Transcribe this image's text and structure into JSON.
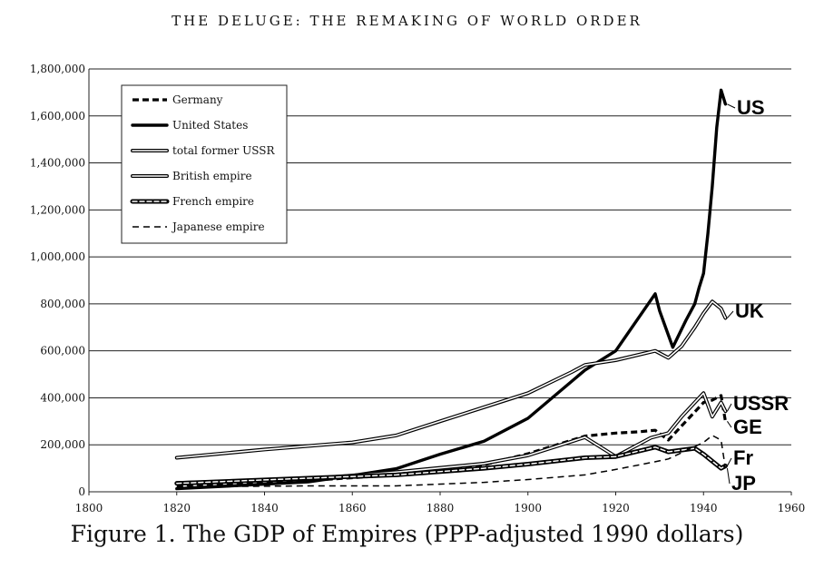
{
  "header": "THE DELUGE: THE REMAKING OF WORLD ORDER",
  "caption": "Figure 1. The GDP of Empires (PPP-adjusted 1990 dollars)",
  "chart_data": {
    "type": "line",
    "title": "",
    "xlabel": "",
    "ylabel": "",
    "xlim": [
      1800,
      1960
    ],
    "ylim": [
      0,
      1800000
    ],
    "grid": "horizontal",
    "legend_position": "top-left",
    "x_ticks": [
      "1800",
      "1820",
      "1840",
      "1860",
      "1880",
      "1900",
      "1920",
      "1940",
      "1960"
    ],
    "y_ticks": [
      "0",
      "200,000",
      "400,000",
      "600,000",
      "800,000",
      "1,000,000",
      "1,200,000",
      "1,400,000",
      "1,600,000",
      "1,800,000"
    ],
    "series": [
      {
        "name": "Germany",
        "label": "GE",
        "style": "dashed-bold",
        "points": [
          [
            1820,
            27000
          ],
          [
            1850,
            48000
          ],
          [
            1870,
            72000
          ],
          [
            1890,
            115000
          ],
          [
            1900,
            162000
          ],
          [
            1913,
            237000
          ],
          [
            1920,
            250000
          ],
          [
            1925,
            255000
          ],
          [
            1929,
            262000
          ],
          [
            1932,
            220000
          ],
          [
            1936,
            300000
          ],
          [
            1938,
            340000
          ],
          [
            1940,
            380000
          ],
          [
            1942,
            390000
          ],
          [
            1943,
            400000
          ],
          [
            1944,
            410000
          ],
          [
            1945,
            300000
          ]
        ]
      },
      {
        "name": "United States",
        "label": "US",
        "style": "bold",
        "points": [
          [
            1820,
            13000
          ],
          [
            1850,
            42000
          ],
          [
            1860,
            69000
          ],
          [
            1870,
            98000
          ],
          [
            1880,
            160000
          ],
          [
            1890,
            215000
          ],
          [
            1900,
            313000
          ],
          [
            1913,
            518000
          ],
          [
            1920,
            600000
          ],
          [
            1929,
            843000
          ],
          [
            1930,
            770000
          ],
          [
            1933,
            615000
          ],
          [
            1936,
            730000
          ],
          [
            1938,
            800000
          ],
          [
            1939,
            869000
          ],
          [
            1940,
            930000
          ],
          [
            1941,
            1100000
          ],
          [
            1942,
            1300000
          ],
          [
            1943,
            1550000
          ],
          [
            1944,
            1710000
          ],
          [
            1945,
            1650000
          ]
        ]
      },
      {
        "name": "total former USSR",
        "label": "USSR",
        "style": "double",
        "points": [
          [
            1820,
            38000
          ],
          [
            1850,
            55000
          ],
          [
            1870,
            84000
          ],
          [
            1890,
            120000
          ],
          [
            1900,
            155000
          ],
          [
            1913,
            232000
          ],
          [
            1920,
            150000
          ],
          [
            1928,
            230000
          ],
          [
            1932,
            250000
          ],
          [
            1935,
            320000
          ],
          [
            1938,
            380000
          ],
          [
            1940,
            420000
          ],
          [
            1942,
            320000
          ],
          [
            1944,
            380000
          ],
          [
            1945,
            343000
          ]
        ]
      },
      {
        "name": "British empire",
        "label": "UK",
        "style": "double",
        "points": [
          [
            1820,
            145000
          ],
          [
            1840,
            180000
          ],
          [
            1860,
            210000
          ],
          [
            1870,
            240000
          ],
          [
            1880,
            300000
          ],
          [
            1890,
            360000
          ],
          [
            1900,
            420000
          ],
          [
            1910,
            510000
          ],
          [
            1913,
            540000
          ],
          [
            1920,
            560000
          ],
          [
            1929,
            600000
          ],
          [
            1932,
            570000
          ],
          [
            1935,
            620000
          ],
          [
            1938,
            700000
          ],
          [
            1940,
            760000
          ],
          [
            1942,
            810000
          ],
          [
            1944,
            780000
          ],
          [
            1945,
            740000
          ]
        ]
      },
      {
        "name": "French empire",
        "label": "Fr",
        "style": "double-bold",
        "points": [
          [
            1820,
            36000
          ],
          [
            1850,
            58000
          ],
          [
            1870,
            72000
          ],
          [
            1890,
            100000
          ],
          [
            1900,
            118000
          ],
          [
            1913,
            145000
          ],
          [
            1920,
            150000
          ],
          [
            1929,
            190000
          ],
          [
            1932,
            170000
          ],
          [
            1938,
            185000
          ],
          [
            1940,
            160000
          ],
          [
            1942,
            130000
          ],
          [
            1944,
            100000
          ],
          [
            1945,
            110000
          ]
        ]
      },
      {
        "name": "Japanese empire",
        "label": "JP",
        "style": "dashed",
        "points": [
          [
            1820,
            21000
          ],
          [
            1850,
            25000
          ],
          [
            1870,
            25000
          ],
          [
            1890,
            40000
          ],
          [
            1900,
            52000
          ],
          [
            1913,
            72000
          ],
          [
            1920,
            95000
          ],
          [
            1929,
            128000
          ],
          [
            1932,
            140000
          ],
          [
            1936,
            175000
          ],
          [
            1940,
            210000
          ],
          [
            1942,
            240000
          ],
          [
            1944,
            220000
          ],
          [
            1945,
            100000
          ]
        ]
      }
    ]
  }
}
